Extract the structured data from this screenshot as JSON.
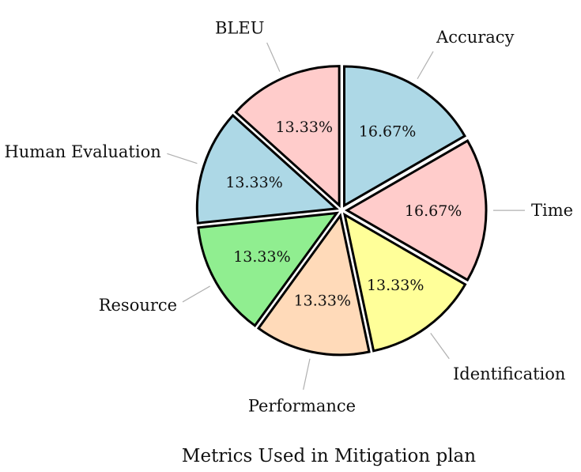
{
  "chart_data": {
    "type": "pie",
    "title": "Metrics Used in Mitigation plan",
    "slices": [
      {
        "label": "Accuracy",
        "value": 16.67,
        "value_label": "16.67%",
        "color": "#add8e6"
      },
      {
        "label": "Time",
        "value": 16.67,
        "value_label": "16.67%",
        "color": "#ffcccb"
      },
      {
        "label": "Identification",
        "value": 13.33,
        "value_label": "13.33%",
        "color": "#ffff99"
      },
      {
        "label": "Performance",
        "value": 13.33,
        "value_label": "13.33%",
        "color": "#ffdab9"
      },
      {
        "label": "Resource",
        "value": 13.33,
        "value_label": "13.33%",
        "color": "#90ee90"
      },
      {
        "label": "Human Evaluation",
        "value": 13.33,
        "value_label": "13.33%",
        "color": "#add8e6"
      },
      {
        "label": "BLEU",
        "value": 13.33,
        "value_label": "13.33%",
        "color": "#ffcccb"
      }
    ],
    "start_angle": "top",
    "direction": "clockwise",
    "exploded": true,
    "legend": "none"
  }
}
